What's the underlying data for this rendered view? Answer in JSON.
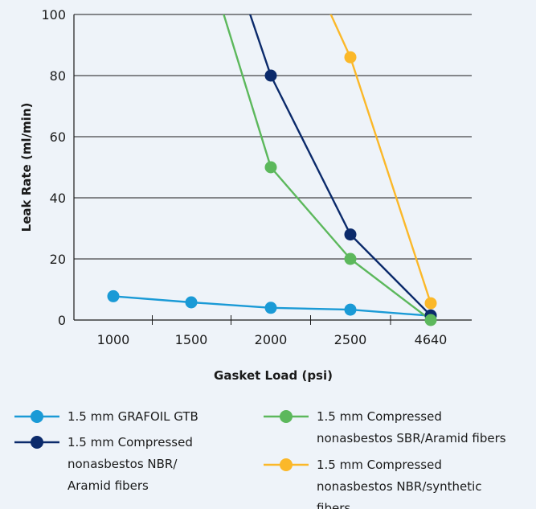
{
  "chart_data": {
    "type": "line",
    "categories": [
      "1000",
      "1500",
      "2000",
      "2500",
      "4640"
    ],
    "xlabel": "Gasket Load (psi)",
    "ylabel": "Leak Rate (ml/min)",
    "ylim": [
      0,
      100
    ],
    "yticks": [
      0,
      20,
      40,
      60,
      80,
      100
    ],
    "grid": true,
    "legend_position": "bottom",
    "series": [
      {
        "name": "1.5 mm GRAFOIL GTB",
        "color": "#1a9ad6",
        "x": [
          0,
          1,
          2,
          3,
          4
        ],
        "values": [
          7.8,
          5.8,
          4.0,
          3.4,
          1.4
        ],
        "markers": [
          true,
          true,
          true,
          true,
          true
        ],
        "legend_lines": [
          "1.5 mm GRAFOIL GTB"
        ]
      },
      {
        "name": "1.5 mm Compressed nonasbestos NBR/Aramid fibers",
        "color": "#0b2a6b",
        "x": [
          1.61,
          2,
          3,
          4
        ],
        "values": [
          110,
          80,
          28,
          1.5
        ],
        "markers": [
          false,
          true,
          true,
          true
        ],
        "legend_lines": [
          "1.5 mm Compressed",
          "nonasbestos NBR/",
          "Aramid fibers"
        ]
      },
      {
        "name": "1.5 mm Compressed nonasbestos SBR/Aramid fibers",
        "color": "#5cb85c",
        "x": [
          1.29,
          2,
          3,
          4
        ],
        "values": [
          110,
          50,
          20,
          0
        ],
        "markers": [
          false,
          true,
          true,
          true
        ],
        "legend_lines": [
          "1.5 mm Compressed",
          "nonasbestos SBR/Aramid fibers"
        ]
      },
      {
        "name": "1.5 mm Compressed nonasbestos NBR/synthetic fibers",
        "color": "#fbb829",
        "x": [
          2.58,
          3,
          4
        ],
        "values": [
          110,
          86,
          5.5
        ],
        "markers": [
          false,
          true,
          true
        ],
        "legend_lines": [
          "1.5 mm Compressed",
          "nonasbestos NBR/synthetic",
          "fibers"
        ]
      }
    ]
  }
}
